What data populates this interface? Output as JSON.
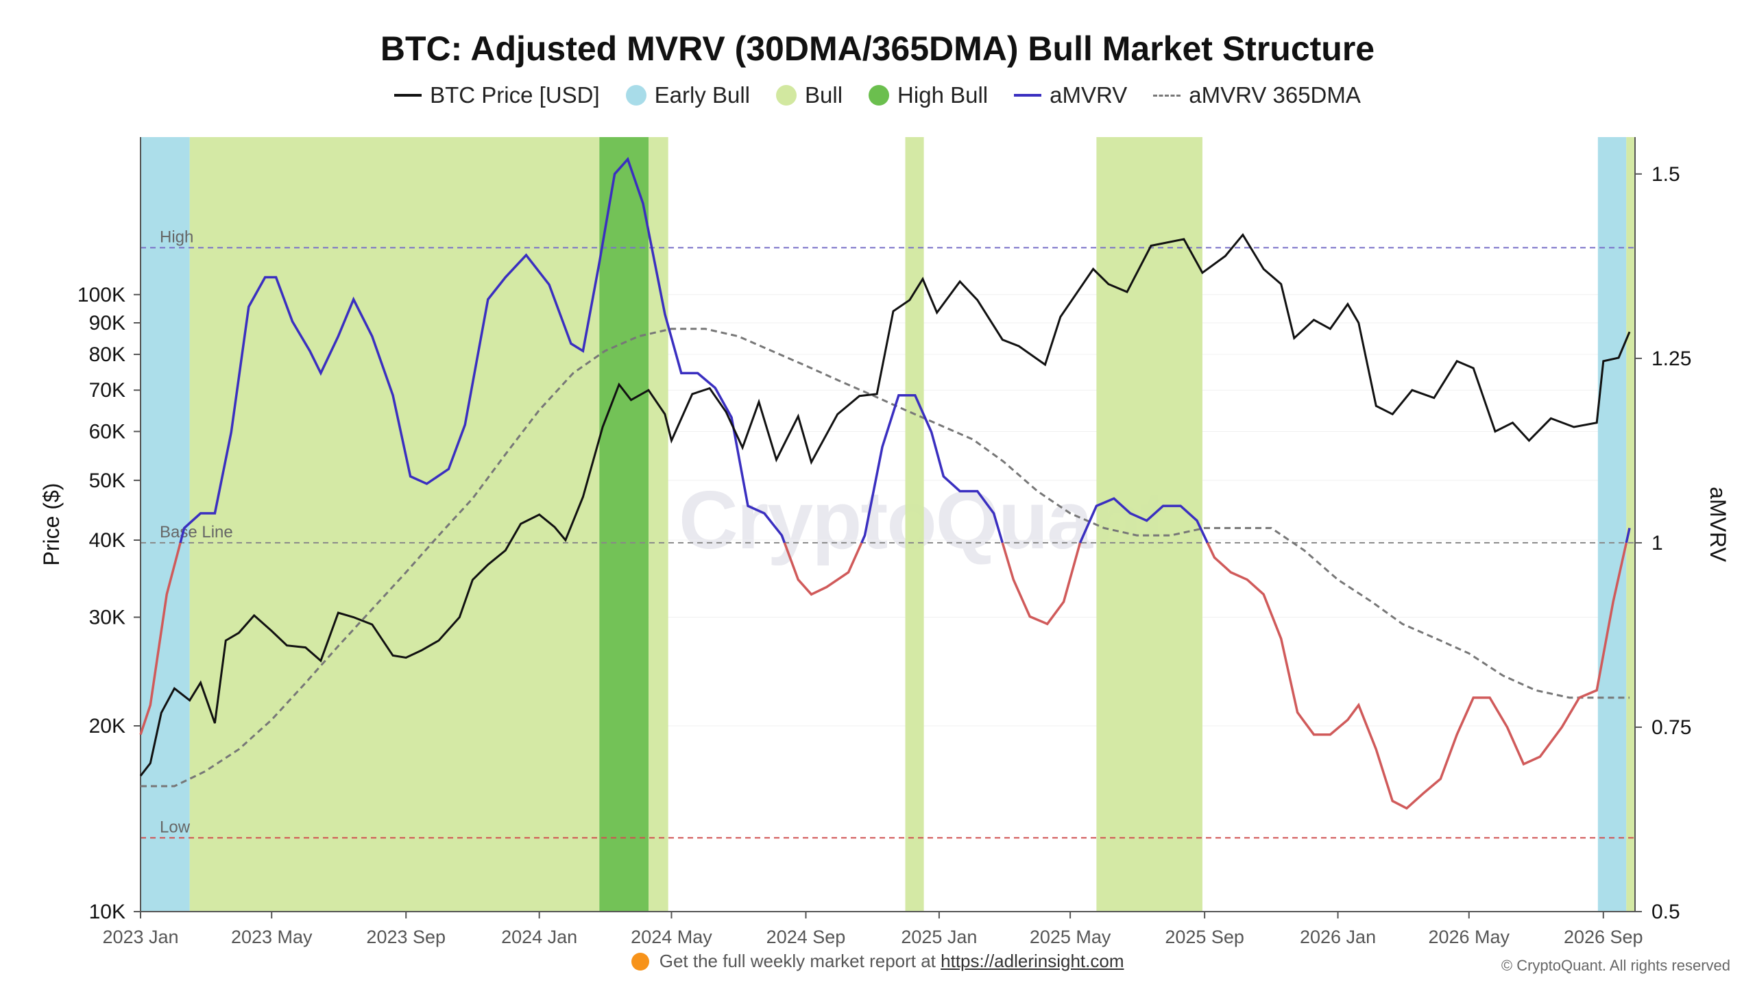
{
  "title": "BTC: Adjusted MVRV (30DMA/365DMA) Bull Market Structure",
  "legend": [
    {
      "label": "BTC Price [USD]",
      "kind": "line",
      "color": "#111111"
    },
    {
      "label": "Early Bull",
      "kind": "dot",
      "color": "#a8dce9"
    },
    {
      "label": "Bull",
      "kind": "dot",
      "color": "#d2e8a0"
    },
    {
      "label": "High Bull",
      "kind": "dot",
      "color": "#6bbf4e"
    },
    {
      "label": "aMVRV",
      "kind": "line",
      "color": "#3a2fc0"
    },
    {
      "label": "aMVRV 365DMA",
      "kind": "dash",
      "color": "#777777"
    }
  ],
  "watermark": "CryptoQuant",
  "footer": {
    "text": "Get the full weekly market report at",
    "link": "https://adlerinsight.com"
  },
  "copyright": "© CryptoQuant. All rights reserved",
  "chart_data": {
    "type": "line",
    "xlabel": "",
    "ylabel_left": "Price ($)",
    "ylabel_right": "aMVRV",
    "x_range": [
      "2023-01-01",
      "2026-09-30"
    ],
    "x_ticks": [
      "2023 Jan",
      "2023 May",
      "2023 Sep",
      "2024 Jan",
      "2024 May",
      "2024 Sep",
      "2025 Jan",
      "2025 May",
      "2025 Sep",
      "2026 Jan",
      "2026 May",
      "2026 Sep"
    ],
    "y_left": {
      "scale": "log",
      "range": [
        10000,
        180000
      ],
      "ticks": [
        "10K",
        "20K",
        "30K",
        "40K",
        "50K",
        "60K",
        "70K",
        "80K",
        "90K",
        "100K"
      ]
    },
    "y_right": {
      "scale": "linear",
      "range": [
        0.5,
        1.55
      ],
      "ticks": [
        "0.5",
        "0.75",
        "1",
        "1.25",
        "1.5"
      ]
    },
    "reference_lines": [
      {
        "label": "High",
        "value": 1.4,
        "color": "#7a72c8"
      },
      {
        "label": "Base Line",
        "value": 1.0,
        "color": "#888888"
      },
      {
        "label": "Low",
        "value": 0.6,
        "color": "#d05050"
      }
    ],
    "amvrv_color_above": "#3a2fc0",
    "amvrv_color_below": "#d05a5a",
    "regimes": [
      {
        "name": "Early Bull",
        "start": "2023-01-01",
        "end": "2023-02-15"
      },
      {
        "name": "Bull",
        "start": "2023-02-15",
        "end": "2024-02-25"
      },
      {
        "name": "High Bull",
        "start": "2024-02-25",
        "end": "2024-04-10"
      },
      {
        "name": "Bull",
        "start": "2024-04-10",
        "end": "2024-04-28"
      },
      {
        "name": "Bull",
        "start": "2024-12-01",
        "end": "2024-12-18"
      },
      {
        "name": "Bull",
        "start": "2025-05-25",
        "end": "2025-08-30"
      },
      {
        "name": "Early Bull",
        "start": "2026-08-27",
        "end": "2026-09-22"
      },
      {
        "name": "Bull",
        "start": "2026-09-22",
        "end": "2026-09-30"
      }
    ],
    "series": [
      {
        "name": "BTC Price [USD]",
        "axis": "left",
        "points": [
          [
            "2023-01-01",
            16600
          ],
          [
            "2023-01-10",
            17400
          ],
          [
            "2023-01-20",
            21000
          ],
          [
            "2023-02-01",
            23000
          ],
          [
            "2023-02-15",
            22000
          ],
          [
            "2023-02-25",
            23500
          ],
          [
            "2023-03-10",
            20200
          ],
          [
            "2023-03-20",
            27500
          ],
          [
            "2023-04-01",
            28300
          ],
          [
            "2023-04-15",
            30200
          ],
          [
            "2023-05-01",
            28500
          ],
          [
            "2023-05-15",
            27000
          ],
          [
            "2023-06-01",
            26800
          ],
          [
            "2023-06-15",
            25500
          ],
          [
            "2023-07-01",
            30500
          ],
          [
            "2023-07-15",
            30000
          ],
          [
            "2023-08-01",
            29200
          ],
          [
            "2023-08-20",
            26000
          ],
          [
            "2023-09-01",
            25800
          ],
          [
            "2023-09-15",
            26500
          ],
          [
            "2023-10-01",
            27500
          ],
          [
            "2023-10-20",
            30000
          ],
          [
            "2023-11-01",
            34500
          ],
          [
            "2023-11-15",
            36500
          ],
          [
            "2023-12-01",
            38500
          ],
          [
            "2023-12-15",
            42500
          ],
          [
            "2024-01-01",
            44000
          ],
          [
            "2024-01-15",
            42000
          ],
          [
            "2024-01-25",
            40000
          ],
          [
            "2024-02-10",
            47000
          ],
          [
            "2024-02-28",
            61000
          ],
          [
            "2024-03-14",
            71500
          ],
          [
            "2024-03-25",
            67500
          ],
          [
            "2024-04-10",
            70000
          ],
          [
            "2024-04-25",
            64000
          ],
          [
            "2024-05-01",
            58000
          ],
          [
            "2024-05-20",
            69000
          ],
          [
            "2024-06-05",
            70500
          ],
          [
            "2024-06-20",
            64500
          ],
          [
            "2024-07-05",
            56500
          ],
          [
            "2024-07-20",
            67000
          ],
          [
            "2024-08-05",
            54000
          ],
          [
            "2024-08-25",
            63500
          ],
          [
            "2024-09-06",
            53500
          ],
          [
            "2024-09-30",
            64000
          ],
          [
            "2024-10-20",
            68500
          ],
          [
            "2024-11-05",
            69000
          ],
          [
            "2024-11-20",
            94000
          ],
          [
            "2024-12-05",
            98000
          ],
          [
            "2024-12-17",
            106000
          ],
          [
            "2024-12-30",
            93500
          ],
          [
            "2025-01-20",
            105000
          ],
          [
            "2025-02-05",
            98000
          ],
          [
            "2025-02-28",
            84500
          ],
          [
            "2025-03-15",
            82500
          ],
          [
            "2025-04-08",
            77000
          ],
          [
            "2025-04-22",
            92000
          ],
          [
            "2025-05-22",
            110000
          ],
          [
            "2025-06-05",
            104000
          ],
          [
            "2025-06-22",
            101000
          ],
          [
            "2025-07-14",
            120000
          ],
          [
            "2025-08-13",
            123000
          ],
          [
            "2025-08-30",
            108500
          ],
          [
            "2025-09-20",
            115500
          ],
          [
            "2025-10-06",
            125000
          ],
          [
            "2025-10-25",
            110000
          ],
          [
            "2025-11-10",
            104000
          ],
          [
            "2025-11-22",
            85000
          ],
          [
            "2025-12-10",
            91000
          ],
          [
            "2025-12-25",
            88000
          ],
          [
            "2026-01-10",
            96500
          ],
          [
            "2026-01-20",
            90000
          ],
          [
            "2026-02-05",
            66000
          ],
          [
            "2026-02-20",
            64000
          ],
          [
            "2026-03-10",
            70000
          ],
          [
            "2026-03-30",
            68000
          ],
          [
            "2026-04-20",
            78000
          ],
          [
            "2026-05-05",
            76000
          ],
          [
            "2026-05-25",
            60000
          ],
          [
            "2026-06-10",
            62000
          ],
          [
            "2026-06-25",
            58000
          ],
          [
            "2026-07-15",
            63000
          ],
          [
            "2026-08-05",
            61000
          ],
          [
            "2026-08-26",
            62000
          ],
          [
            "2026-09-01",
            78000
          ],
          [
            "2026-09-15",
            79000
          ],
          [
            "2026-09-25",
            87000
          ]
        ]
      },
      {
        "name": "aMVRV",
        "axis": "right",
        "points": [
          [
            "2023-01-01",
            0.74
          ],
          [
            "2023-01-10",
            0.78
          ],
          [
            "2023-01-25",
            0.93
          ],
          [
            "2023-02-10",
            1.02
          ],
          [
            "2023-02-25",
            1.04
          ],
          [
            "2023-03-10",
            1.04
          ],
          [
            "2023-03-25",
            1.15
          ],
          [
            "2023-04-10",
            1.32
          ],
          [
            "2023-04-25",
            1.36
          ],
          [
            "2023-05-05",
            1.36
          ],
          [
            "2023-05-20",
            1.3
          ],
          [
            "2023-06-05",
            1.26
          ],
          [
            "2023-06-15",
            1.23
          ],
          [
            "2023-07-01",
            1.28
          ],
          [
            "2023-07-15",
            1.33
          ],
          [
            "2023-08-01",
            1.28
          ],
          [
            "2023-08-20",
            1.2
          ],
          [
            "2023-09-05",
            1.09
          ],
          [
            "2023-09-20",
            1.08
          ],
          [
            "2023-10-10",
            1.1
          ],
          [
            "2023-10-25",
            1.16
          ],
          [
            "2023-11-15",
            1.33
          ],
          [
            "2023-12-01",
            1.36
          ],
          [
            "2023-12-20",
            1.39
          ],
          [
            "2024-01-10",
            1.35
          ],
          [
            "2024-01-30",
            1.27
          ],
          [
            "2024-02-10",
            1.26
          ],
          [
            "2024-02-25",
            1.38
          ],
          [
            "2024-03-10",
            1.5
          ],
          [
            "2024-03-22",
            1.52
          ],
          [
            "2024-04-05",
            1.46
          ],
          [
            "2024-04-25",
            1.31
          ],
          [
            "2024-05-10",
            1.23
          ],
          [
            "2024-05-25",
            1.23
          ],
          [
            "2024-06-10",
            1.21
          ],
          [
            "2024-06-25",
            1.17
          ],
          [
            "2024-07-10",
            1.05
          ],
          [
            "2024-07-25",
            1.04
          ],
          [
            "2024-08-10",
            1.01
          ],
          [
            "2024-08-25",
            0.95
          ],
          [
            "2024-09-06",
            0.93
          ],
          [
            "2024-09-20",
            0.94
          ],
          [
            "2024-10-10",
            0.96
          ],
          [
            "2024-10-25",
            1.01
          ],
          [
            "2024-11-10",
            1.13
          ],
          [
            "2024-11-25",
            1.2
          ],
          [
            "2024-12-10",
            1.2
          ],
          [
            "2024-12-25",
            1.15
          ],
          [
            "2025-01-05",
            1.09
          ],
          [
            "2025-01-20",
            1.07
          ],
          [
            "2025-02-05",
            1.07
          ],
          [
            "2025-02-20",
            1.04
          ],
          [
            "2025-03-10",
            0.95
          ],
          [
            "2025-03-25",
            0.9
          ],
          [
            "2025-04-10",
            0.89
          ],
          [
            "2025-04-25",
            0.92
          ],
          [
            "2025-05-10",
            1.0
          ],
          [
            "2025-05-25",
            1.05
          ],
          [
            "2025-06-10",
            1.06
          ],
          [
            "2025-06-25",
            1.04
          ],
          [
            "2025-07-10",
            1.03
          ],
          [
            "2025-07-25",
            1.05
          ],
          [
            "2025-08-10",
            1.05
          ],
          [
            "2025-08-25",
            1.03
          ],
          [
            "2025-09-10",
            0.98
          ],
          [
            "2025-09-25",
            0.96
          ],
          [
            "2025-10-10",
            0.95
          ],
          [
            "2025-10-25",
            0.93
          ],
          [
            "2025-11-10",
            0.87
          ],
          [
            "2025-11-25",
            0.77
          ],
          [
            "2025-12-10",
            0.74
          ],
          [
            "2025-12-25",
            0.74
          ],
          [
            "2026-01-10",
            0.76
          ],
          [
            "2026-01-20",
            0.78
          ],
          [
            "2026-02-05",
            0.72
          ],
          [
            "2026-02-20",
            0.65
          ],
          [
            "2026-03-05",
            0.64
          ],
          [
            "2026-03-20",
            0.66
          ],
          [
            "2026-04-05",
            0.68
          ],
          [
            "2026-04-20",
            0.74
          ],
          [
            "2026-05-05",
            0.79
          ],
          [
            "2026-05-20",
            0.79
          ],
          [
            "2026-06-05",
            0.75
          ],
          [
            "2026-06-20",
            0.7
          ],
          [
            "2026-07-05",
            0.71
          ],
          [
            "2026-07-25",
            0.75
          ],
          [
            "2026-08-10",
            0.79
          ],
          [
            "2026-08-26",
            0.8
          ],
          [
            "2026-09-10",
            0.92
          ],
          [
            "2026-09-25",
            1.02
          ]
        ]
      },
      {
        "name": "aMVRV 365DMA",
        "axis": "right",
        "points": [
          [
            "2023-01-01",
            0.67
          ],
          [
            "2023-02-01",
            0.67
          ],
          [
            "2023-03-01",
            0.69
          ],
          [
            "2023-04-01",
            0.72
          ],
          [
            "2023-05-01",
            0.76
          ],
          [
            "2023-06-01",
            0.81
          ],
          [
            "2023-07-01",
            0.86
          ],
          [
            "2023-08-01",
            0.91
          ],
          [
            "2023-09-01",
            0.96
          ],
          [
            "2023-10-01",
            1.01
          ],
          [
            "2023-11-01",
            1.06
          ],
          [
            "2023-12-01",
            1.12
          ],
          [
            "2024-01-01",
            1.18
          ],
          [
            "2024-02-01",
            1.23
          ],
          [
            "2024-03-01",
            1.26
          ],
          [
            "2024-04-01",
            1.28
          ],
          [
            "2024-05-01",
            1.29
          ],
          [
            "2024-06-01",
            1.29
          ],
          [
            "2024-07-01",
            1.28
          ],
          [
            "2024-08-01",
            1.26
          ],
          [
            "2024-09-01",
            1.24
          ],
          [
            "2024-10-01",
            1.22
          ],
          [
            "2024-11-01",
            1.2
          ],
          [
            "2024-12-01",
            1.18
          ],
          [
            "2025-01-01",
            1.16
          ],
          [
            "2025-02-01",
            1.14
          ],
          [
            "2025-03-01",
            1.11
          ],
          [
            "2025-04-01",
            1.07
          ],
          [
            "2025-05-01",
            1.04
          ],
          [
            "2025-06-01",
            1.02
          ],
          [
            "2025-07-01",
            1.01
          ],
          [
            "2025-08-01",
            1.01
          ],
          [
            "2025-09-01",
            1.02
          ],
          [
            "2025-10-01",
            1.02
          ],
          [
            "2025-11-01",
            1.02
          ],
          [
            "2025-12-01",
            0.99
          ],
          [
            "2026-01-01",
            0.95
          ],
          [
            "2026-02-01",
            0.92
          ],
          [
            "2026-03-01",
            0.89
          ],
          [
            "2026-04-01",
            0.87
          ],
          [
            "2026-05-01",
            0.85
          ],
          [
            "2026-06-01",
            0.82
          ],
          [
            "2026-07-01",
            0.8
          ],
          [
            "2026-08-01",
            0.79
          ],
          [
            "2026-08-20",
            0.79
          ],
          [
            "2026-09-25",
            0.79
          ]
        ]
      }
    ]
  }
}
